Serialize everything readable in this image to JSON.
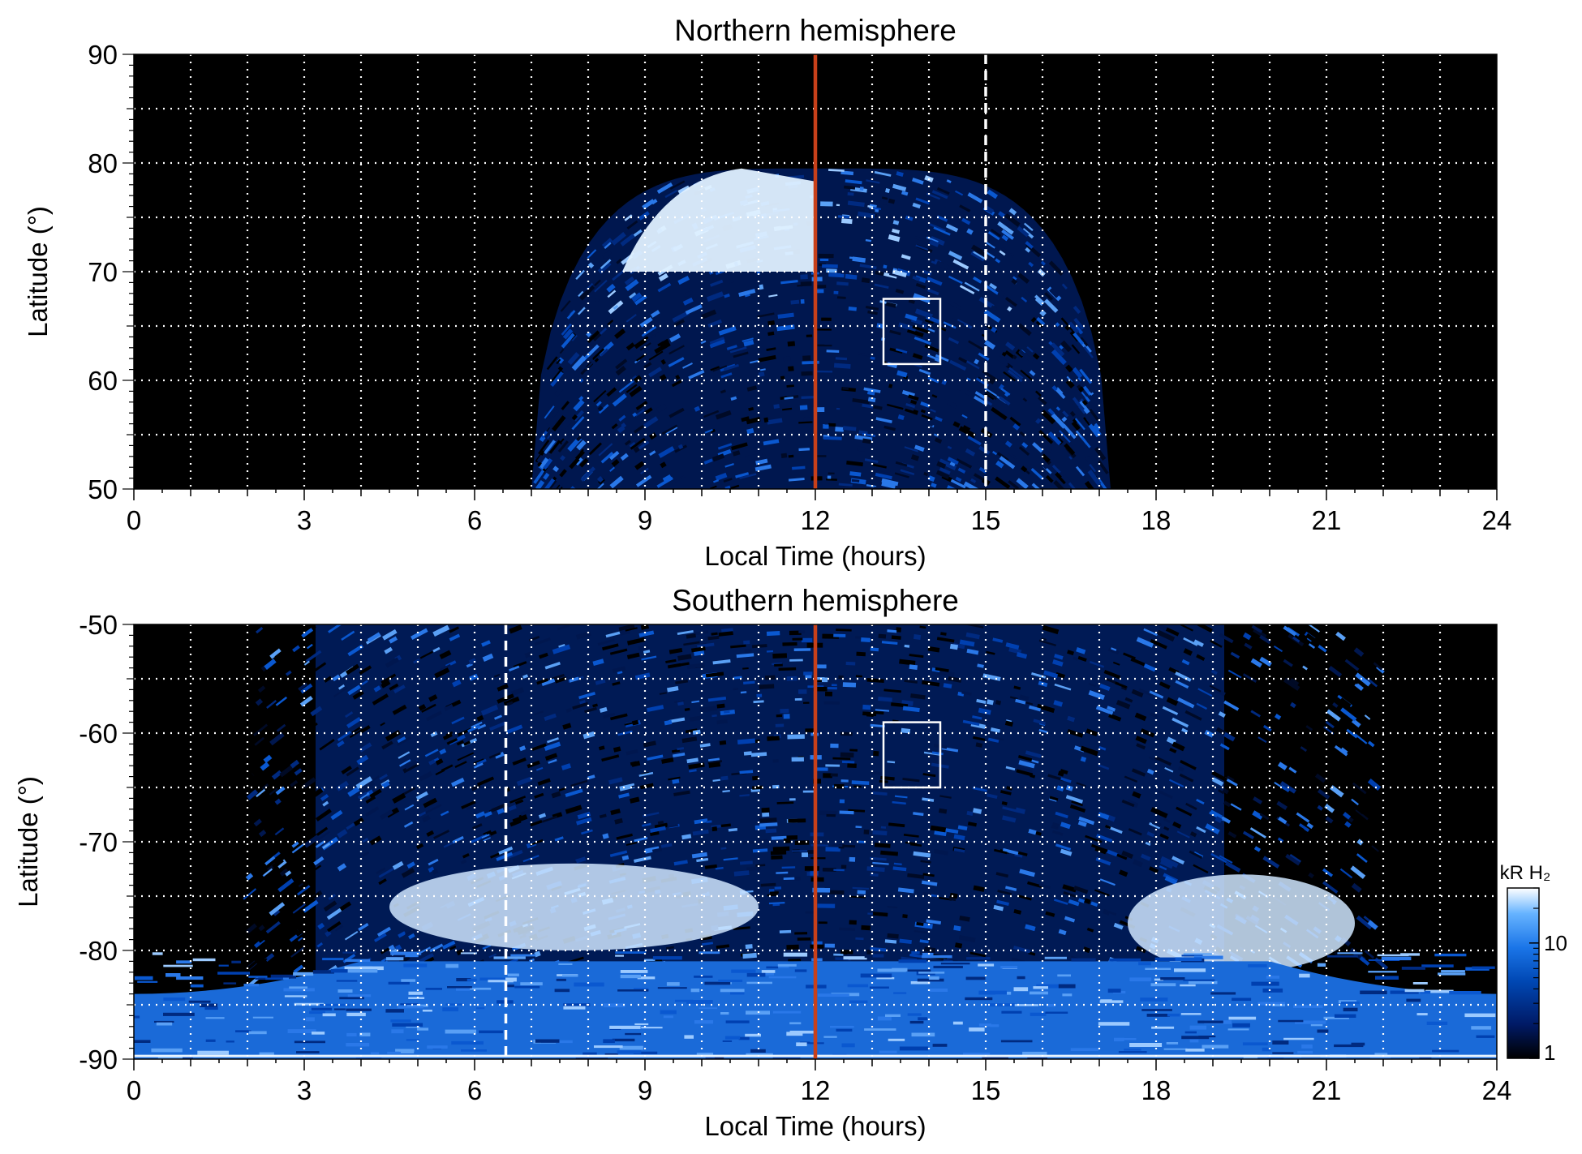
{
  "chart_data": [
    {
      "type": "heatmap",
      "title": "Northern hemisphere",
      "xlabel": "Local Time (hours)",
      "ylabel": "Latitude (°)",
      "xlim": [
        0,
        24
      ],
      "ylim": [
        50,
        90
      ],
      "xticks": [
        0,
        3,
        6,
        9,
        12,
        15,
        18,
        21,
        24
      ],
      "xtick_labels": [
        "0",
        "3",
        "6",
        "9",
        "12",
        "15",
        "18",
        "21",
        "24"
      ],
      "yticks": [
        50,
        60,
        70,
        80,
        90
      ],
      "ytick_labels": [
        "50",
        "60",
        "70",
        "80",
        "90"
      ],
      "grid": true,
      "grid_x_step_hours": 1,
      "grid_y_step_deg": 5,
      "coverage": {
        "lt_start": 7.0,
        "lt_end": 17.2,
        "top_latitude": 79.5
      },
      "bright_region": {
        "lt_start": 8.6,
        "lt_end": 12.0,
        "lat_min": 70,
        "lat_max": 79.5
      },
      "noon_line_lt": 12,
      "dashed_line_lt": 15,
      "box": {
        "lt_min": 13.2,
        "lt_max": 14.2,
        "lat_min": 61.5,
        "lat_max": 67.5
      }
    },
    {
      "type": "heatmap",
      "title": "Southern hemisphere",
      "xlabel": "Local Time (hours)",
      "ylabel": "Latitude (°)",
      "xlim": [
        0,
        24
      ],
      "ylim": [
        -90,
        -50
      ],
      "xticks": [
        0,
        3,
        6,
        9,
        12,
        15,
        18,
        21,
        24
      ],
      "xtick_labels": [
        "0",
        "3",
        "6",
        "9",
        "12",
        "15",
        "18",
        "21",
        "24"
      ],
      "yticks": [
        -90,
        -80,
        -70,
        -60,
        -50
      ],
      "ytick_labels": [
        "-90",
        "-80",
        "-70",
        "-60",
        "-50"
      ],
      "grid": true,
      "grid_x_step_hours": 1,
      "grid_y_step_deg": 5,
      "bright_regions": [
        {
          "lt_start": 4.5,
          "lt_end": 11.0,
          "lat_min": -80,
          "lat_max": -72
        },
        {
          "lt_start": 17.5,
          "lt_end": 21.5,
          "lat_min": -82,
          "lat_max": -73
        }
      ],
      "noon_line_lt": 12,
      "dashed_line_lt": 6.55,
      "box": {
        "lt_min": 13.2,
        "lt_max": 14.2,
        "lat_min": -65,
        "lat_max": -59
      }
    }
  ],
  "colorbar": {
    "label": "kR H₂",
    "scale": "log",
    "range": [
      1,
      30
    ],
    "tick_values": [
      1,
      10
    ],
    "tick_labels": [
      "1",
      "10"
    ],
    "colors": [
      "#000000",
      "#001a66",
      "#0047b3",
      "#1a75e8",
      "#66b3ff",
      "#ffffff"
    ]
  },
  "colors": {
    "background": "#000000",
    "noon_line": "#c8401a",
    "grid": "#ffffff",
    "box": "#ffffff"
  }
}
